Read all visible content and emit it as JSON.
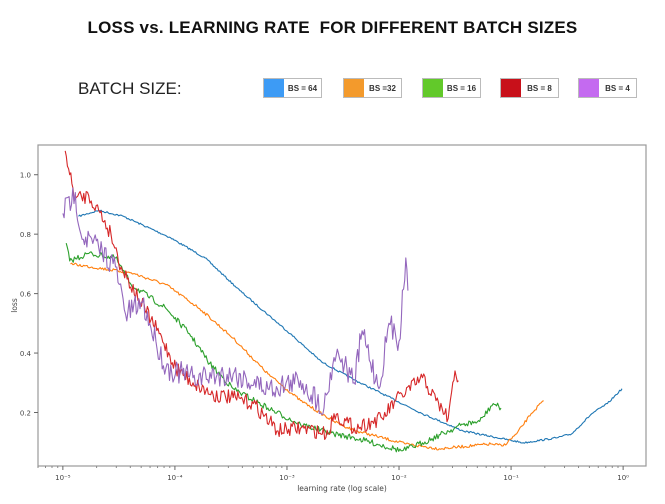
{
  "title": "LOSS vs. LEARNING RATE  FOR DIFFERENT BATCH SIZES",
  "legend_heading": "BATCH SIZE:",
  "legend": [
    {
      "label": "BS = 64",
      "color": "#3d9bf5"
    },
    {
      "label": "BS =32",
      "color": "#f39a2c"
    },
    {
      "label": "BS = 16",
      "color": "#62c92a"
    },
    {
      "label": "BS = 8",
      "color": "#c8101a"
    },
    {
      "label": "BS = 4",
      "color": "#c46af0"
    }
  ],
  "chart_data": {
    "type": "line",
    "xlabel": "learning rate (log scale)",
    "ylabel": "loss",
    "xscale": "log",
    "xlim": [
      6e-06,
      1.6
    ],
    "ylim": [
      0.02,
      1.1
    ],
    "grid": false,
    "legend_placement": "top (above chart)",
    "xticks": [
      {
        "value": 1e-05,
        "label": "10⁻⁵"
      },
      {
        "value": 0.0001,
        "label": "10⁻⁴"
      },
      {
        "value": 0.001,
        "label": "10⁻³"
      },
      {
        "value": 0.01,
        "label": "10⁻²"
      },
      {
        "value": 0.1,
        "label": "10⁻¹"
      },
      {
        "value": 1,
        "label": "10⁰"
      }
    ],
    "yticks": [
      {
        "value": 0.2,
        "label": "0.2"
      },
      {
        "value": 0.4,
        "label": "0.4"
      },
      {
        "value": 0.6,
        "label": "0.6"
      },
      {
        "value": 0.8,
        "label": "0.8"
      },
      {
        "value": 1.0,
        "label": "1.0"
      }
    ],
    "series": [
      {
        "name": "BS = 64",
        "color": "#1f77b4",
        "noise": 0.003,
        "x": [
          1.38e-05,
          2.09e-05,
          3.47e-05,
          8.91e-05,
          0.000186,
          0.00038,
          0.00107,
          0.00204,
          0.00398,
          0.0162,
          0.0372,
          0.129,
          0.257,
          0.347,
          0.525,
          0.724,
          0.977
        ],
        "y": [
          0.86,
          0.88,
          0.86,
          0.79,
          0.72,
          0.61,
          0.465,
          0.37,
          0.31,
          0.196,
          0.138,
          0.098,
          0.115,
          0.128,
          0.196,
          0.23,
          0.28
        ]
      },
      {
        "name": "BS =32",
        "color": "#ff7f0e",
        "noise": 0.005,
        "x": [
          1.17e-05,
          4.07e-05,
          8.32e-05,
          0.000166,
          0.000331,
          0.000676,
          0.00132,
          0.00263,
          0.00398,
          0.0115,
          0.0229,
          0.0661,
          0.0851,
          0.112,
          0.151,
          0.195
        ],
        "y": [
          0.7,
          0.67,
          0.63,
          0.55,
          0.45,
          0.33,
          0.24,
          0.17,
          0.14,
          0.094,
          0.078,
          0.094,
          0.088,
          0.128,
          0.196,
          0.24
        ]
      },
      {
        "name": "BS = 16",
        "color": "#2ca02c",
        "noise": 0.01,
        "x": [
          1.07e-05,
          1.15e-05,
          1.7e-05,
          2.95e-05,
          4.07e-05,
          8.32e-05,
          0.000135,
          0.000204,
          0.000331,
          0.000676,
          0.00132,
          0.00263,
          0.00398,
          0.0107,
          0.0162,
          0.0372,
          0.0525,
          0.0692,
          0.0813
        ],
        "y": [
          0.77,
          0.71,
          0.735,
          0.72,
          0.63,
          0.55,
          0.465,
          0.365,
          0.28,
          0.215,
          0.16,
          0.128,
          0.115,
          0.071,
          0.098,
          0.16,
          0.17,
          0.23,
          0.215
        ]
      },
      {
        "name": "BS = 8",
        "color": "#d62728",
        "noise": 0.025,
        "x": [
          1.05e-05,
          1.15e-05,
          1.29e-05,
          1.7e-05,
          2.09e-05,
          2.69e-05,
          3.31e-05,
          4.79e-05,
          7.24e-05,
          0.000102,
          0.000145,
          0.000219,
          0.000331,
          0.000501,
          0.000832,
          0.00132,
          0.00234,
          0.00263,
          0.00398,
          0.00708,
          0.00933,
          0.0162,
          0.0214,
          0.0275,
          0.0316,
          0.0339
        ],
        "y": [
          1.08,
          1.0,
          0.92,
          0.93,
          0.88,
          0.8,
          0.69,
          0.58,
          0.465,
          0.35,
          0.3,
          0.26,
          0.25,
          0.23,
          0.138,
          0.148,
          0.128,
          0.196,
          0.148,
          0.18,
          0.24,
          0.317,
          0.24,
          0.18,
          0.34,
          0.307
        ]
      },
      {
        "name": "BS = 4",
        "color": "#9467bd",
        "noise": 0.04,
        "x": [
          1e-05,
          1.29e-05,
          1.45e-05,
          2.09e-05,
          2.95e-05,
          3.63e-05,
          5.13e-05,
          6.76e-05,
          8.32e-05,
          0.000145,
          0.000331,
          0.000676,
          0.00132,
          0.00214,
          0.00263,
          0.00288,
          0.00398,
          0.00468,
          0.00661,
          0.00813,
          0.01,
          0.0115,
          0.012
        ],
        "y": [
          0.87,
          0.94,
          0.8,
          0.755,
          0.69,
          0.53,
          0.57,
          0.44,
          0.35,
          0.317,
          0.33,
          0.28,
          0.307,
          0.215,
          0.385,
          0.4,
          0.3,
          0.475,
          0.28,
          0.5,
          0.44,
          0.72,
          0.61
        ]
      }
    ]
  }
}
